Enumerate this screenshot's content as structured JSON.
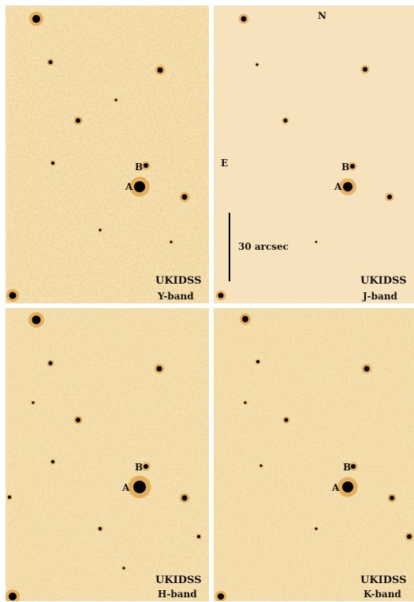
{
  "panels": [
    {
      "id": "y",
      "survey": "UKIDSS",
      "band": "Y-band",
      "star_a": "A",
      "star_b": "B"
    },
    {
      "id": "j",
      "survey": "UKIDSS",
      "band": "J-band",
      "star_a": "A",
      "star_b": "B",
      "north": "N",
      "east": "E",
      "scale": "30 arcsec"
    },
    {
      "id": "h",
      "survey": "UKIDSS",
      "band": "H-band",
      "star_a": "A",
      "star_b": "B"
    },
    {
      "id": "k",
      "survey": "UKIDSS",
      "band": "K-band",
      "star_a": "A",
      "star_b": "B"
    }
  ],
  "colors": {
    "background_light": "#f2d9a6",
    "star_core": "#000000",
    "star_halo": "#d98a1c"
  }
}
